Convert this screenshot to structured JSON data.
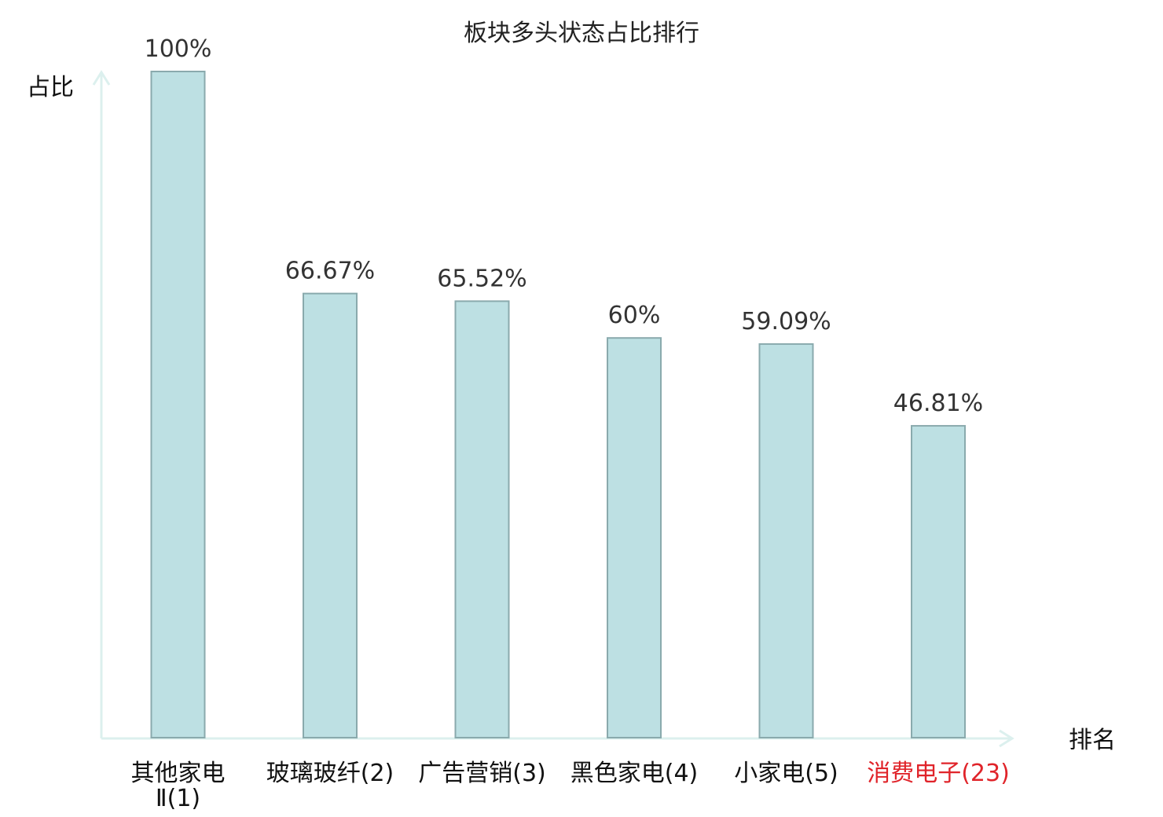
{
  "chart_data": {
    "type": "bar",
    "title": "板块多头状态占比排行",
    "ylabel": "占比",
    "xlabel": "排名",
    "categories": [
      "其他家电Ⅱ(1)",
      "玻璃玻纤(2)",
      "广告营销(3)",
      "黑色家电(4)",
      "小家电(5)",
      "消费电子(23)"
    ],
    "category_lines": [
      [
        "其他家电",
        "Ⅱ(1)"
      ],
      [
        "玻璃玻纤(2)"
      ],
      [
        "广告营销(3)"
      ],
      [
        "黑色家电(4)"
      ],
      [
        "小家电(5)"
      ],
      [
        "消费电子(23)"
      ]
    ],
    "values": [
      100,
      66.67,
      65.52,
      60,
      59.09,
      46.81
    ],
    "value_labels": [
      "100%",
      "66.67%",
      "65.52%",
      "60%",
      "59.09%",
      "46.81%"
    ],
    "ylim": [
      0,
      100
    ],
    "grid": false,
    "highlight_category_index": 5,
    "colors": {
      "bar_fill": "#bde0e3",
      "bar_stroke": "#8aaaad",
      "axis": "#dcf0ee",
      "highlight_text": "#e0242a"
    }
  }
}
